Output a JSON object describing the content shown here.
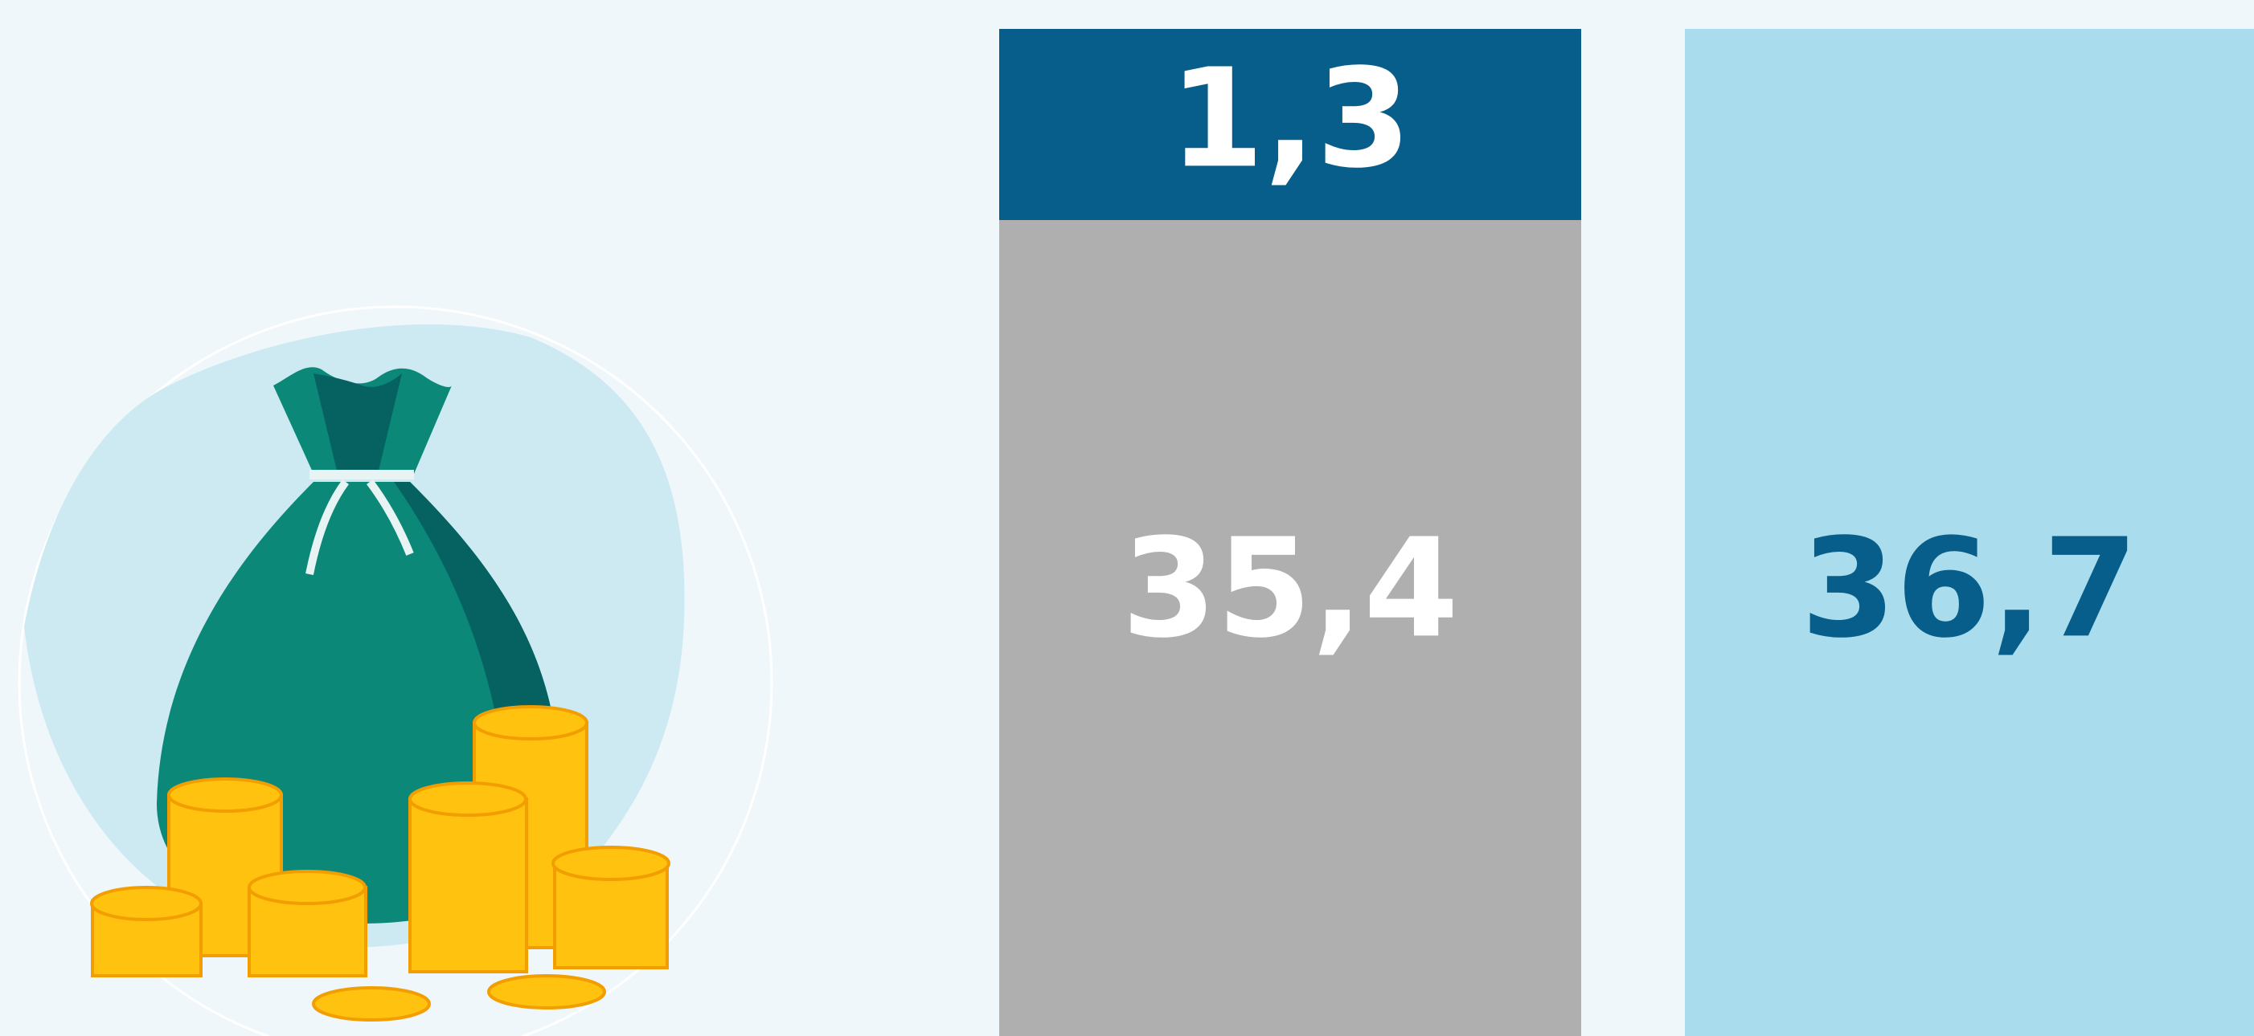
{
  "stacked_column": {
    "top": "1,3",
    "bottom": "35,4"
  },
  "total_column": {
    "label": "36,7"
  }
}
